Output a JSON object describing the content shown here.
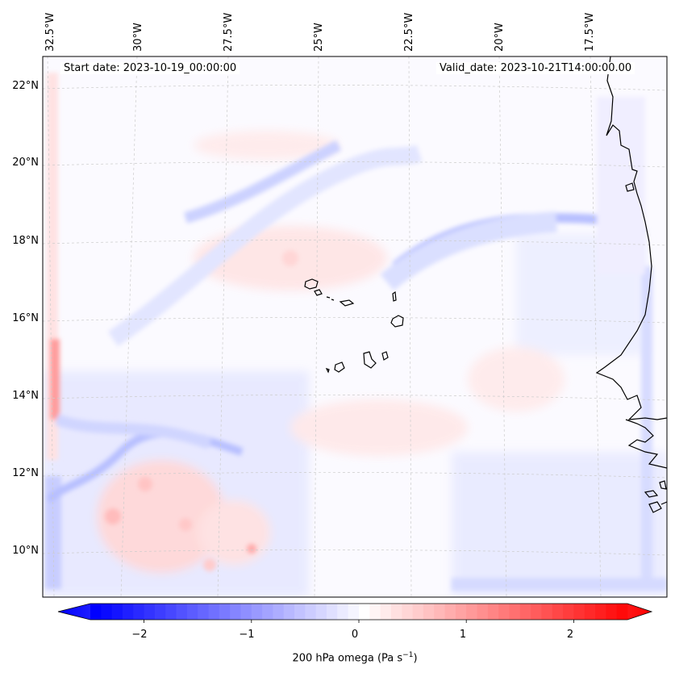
{
  "map": {
    "start_annotation": "Start date: 2023-10-19_00:00:00",
    "valid_annotation": "Valid_date: 2023-10-21T14:00:00.00",
    "lon_labels": [
      "32.5°W",
      "30°W",
      "27.5°W",
      "25°W",
      "22.5°W",
      "20°W",
      "17.5°W"
    ],
    "lat_labels": [
      "22°N",
      "20°N",
      "18°N",
      "16°N",
      "14°N",
      "12°N",
      "10°N"
    ]
  },
  "colorbar": {
    "ticks": [
      "−2",
      "−1",
      "0",
      "1",
      "2"
    ],
    "tick_values": [
      -2,
      -1,
      0,
      1,
      2
    ],
    "range": [
      -2.7,
      2.7
    ],
    "label_prefix": "200 hPa omega (Pa s",
    "label_exponent": "−1",
    "label_suffix": ")",
    "colors": {
      "min": "#0000ff",
      "mid": "#ffffff",
      "max": "#ff0000"
    }
  }
}
